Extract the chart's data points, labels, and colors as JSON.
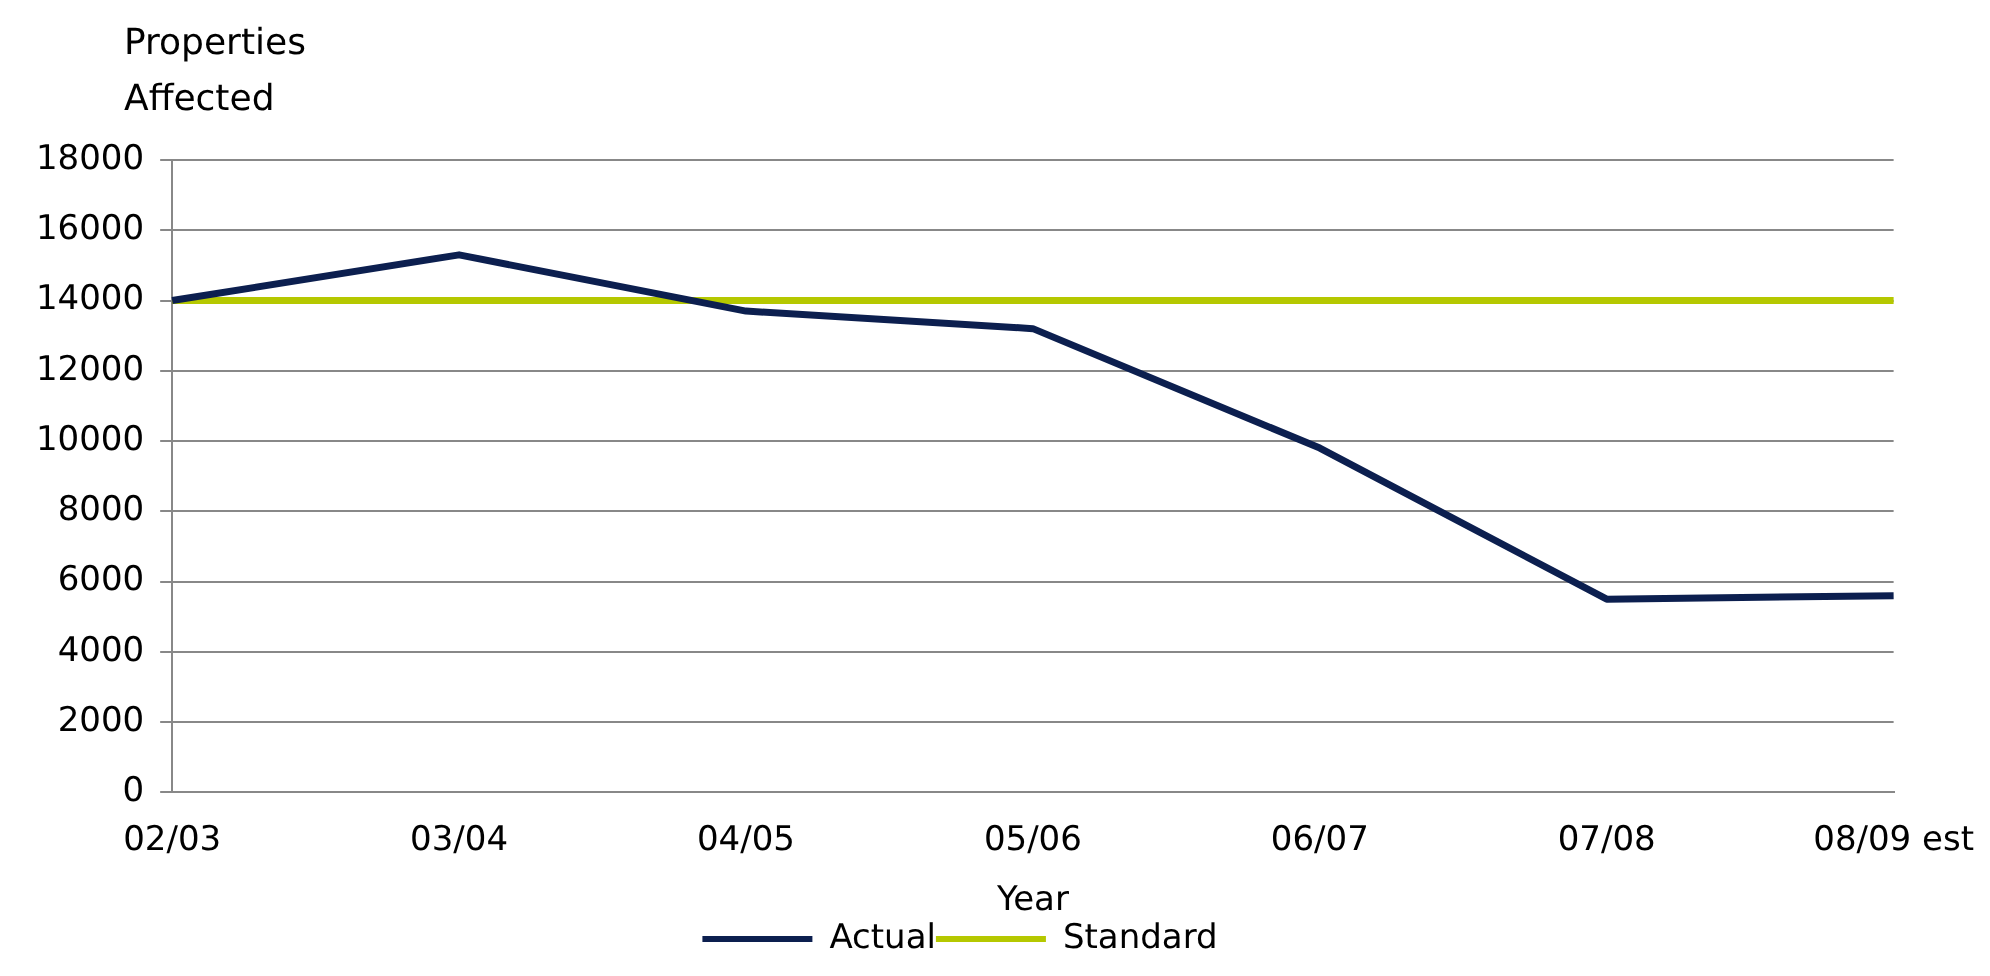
{
  "chart_data": {
    "type": "line",
    "ylabel": "Properties Affected",
    "xlabel": "Year",
    "categories": [
      "02/03",
      "03/04",
      "04/05",
      "05/06",
      "06/07",
      "07/08",
      "08/09 est"
    ],
    "series": [
      {
        "name": "Actual",
        "color": "#0c1f4f",
        "values": [
          14000,
          15300,
          13700,
          13200,
          9800,
          5500,
          5600
        ]
      },
      {
        "name": "Standard",
        "color": "#b5c800",
        "values": [
          14000,
          14000,
          14000,
          14000,
          14000,
          14000,
          14000
        ]
      }
    ],
    "ylim": [
      0,
      18000
    ],
    "yticks": [
      0,
      2000,
      4000,
      6000,
      8000,
      10000,
      12000,
      14000,
      16000,
      18000
    ],
    "grid": "y",
    "legend": "bottom",
    "marker": "none",
    "line_style": "solid"
  }
}
